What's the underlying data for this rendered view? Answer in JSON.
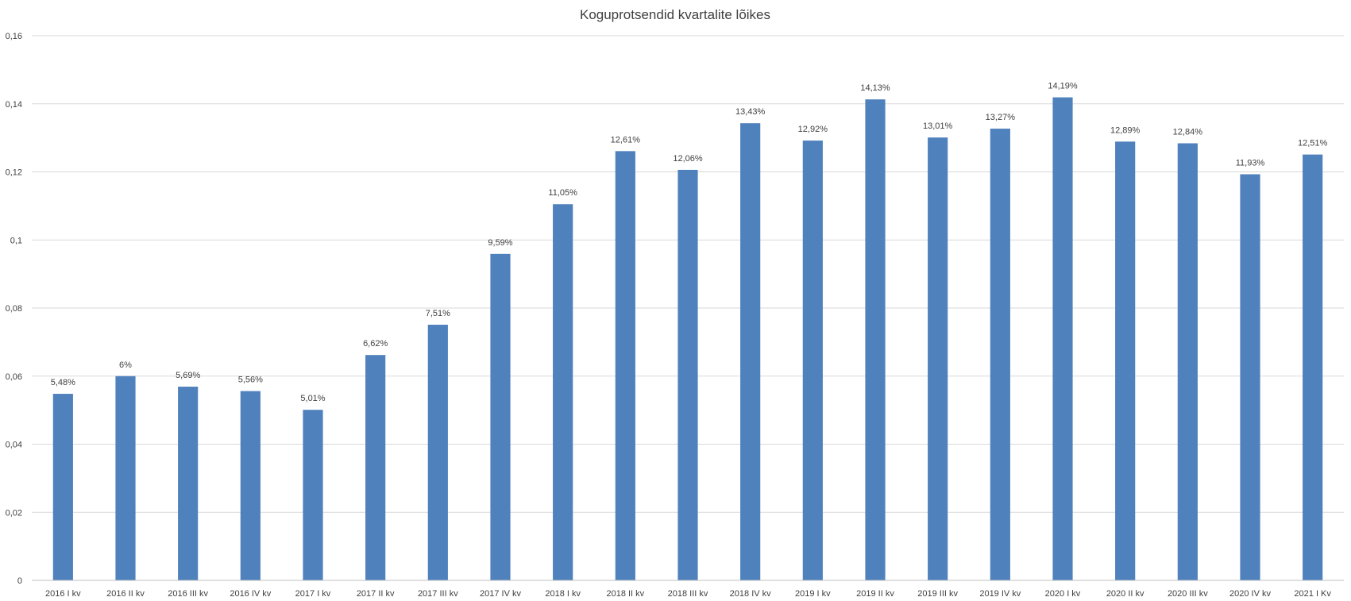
{
  "chart_data": {
    "type": "bar",
    "title": "Koguprotsendid kvartalite lõikes",
    "xlabel": "",
    "ylabel": "",
    "ylim": [
      0,
      0.16
    ],
    "ytick_step": 0.02,
    "yticks": [
      "0",
      "0,02",
      "0,04",
      "0,06",
      "0,08",
      "0,1",
      "0,12",
      "0,14",
      "0,16"
    ],
    "grid": true,
    "legend": "none",
    "bar_color": "#4f81bd",
    "categories": [
      "2016 I kv",
      "2016 II kv",
      "2016 III kv",
      "2016 IV kv",
      "2017 I kv",
      "2017 II kv",
      "2017 III kv",
      "2017 IV kv",
      "2018 I kv",
      "2018 II kv",
      "2018 III kv",
      "2018 IV kv",
      "2019 I kv",
      "2019 II kv",
      "2019 III kv",
      "2019 IV kv",
      "2020 I kv",
      "2020 II kv",
      "2020 III kv",
      "2020 IV kv",
      "2021 I Kv"
    ],
    "values": [
      0.0548,
      0.06,
      0.0569,
      0.0556,
      0.0501,
      0.0662,
      0.0751,
      0.0959,
      0.1105,
      0.1261,
      0.1206,
      0.1343,
      0.1292,
      0.1413,
      0.1301,
      0.1327,
      0.1419,
      0.1289,
      0.1284,
      0.1193,
      0.1251
    ],
    "data_labels": [
      "5,48%",
      "6%",
      "5,69%",
      "5,56%",
      "5,01%",
      "6,62%",
      "7,51%",
      "9,59%",
      "11,05%",
      "12,61%",
      "12,06%",
      "13,43%",
      "12,92%",
      "14,13%",
      "13,01%",
      "13,27%",
      "14,19%",
      "12,89%",
      "12,84%",
      "11,93%",
      "12,51%"
    ]
  }
}
